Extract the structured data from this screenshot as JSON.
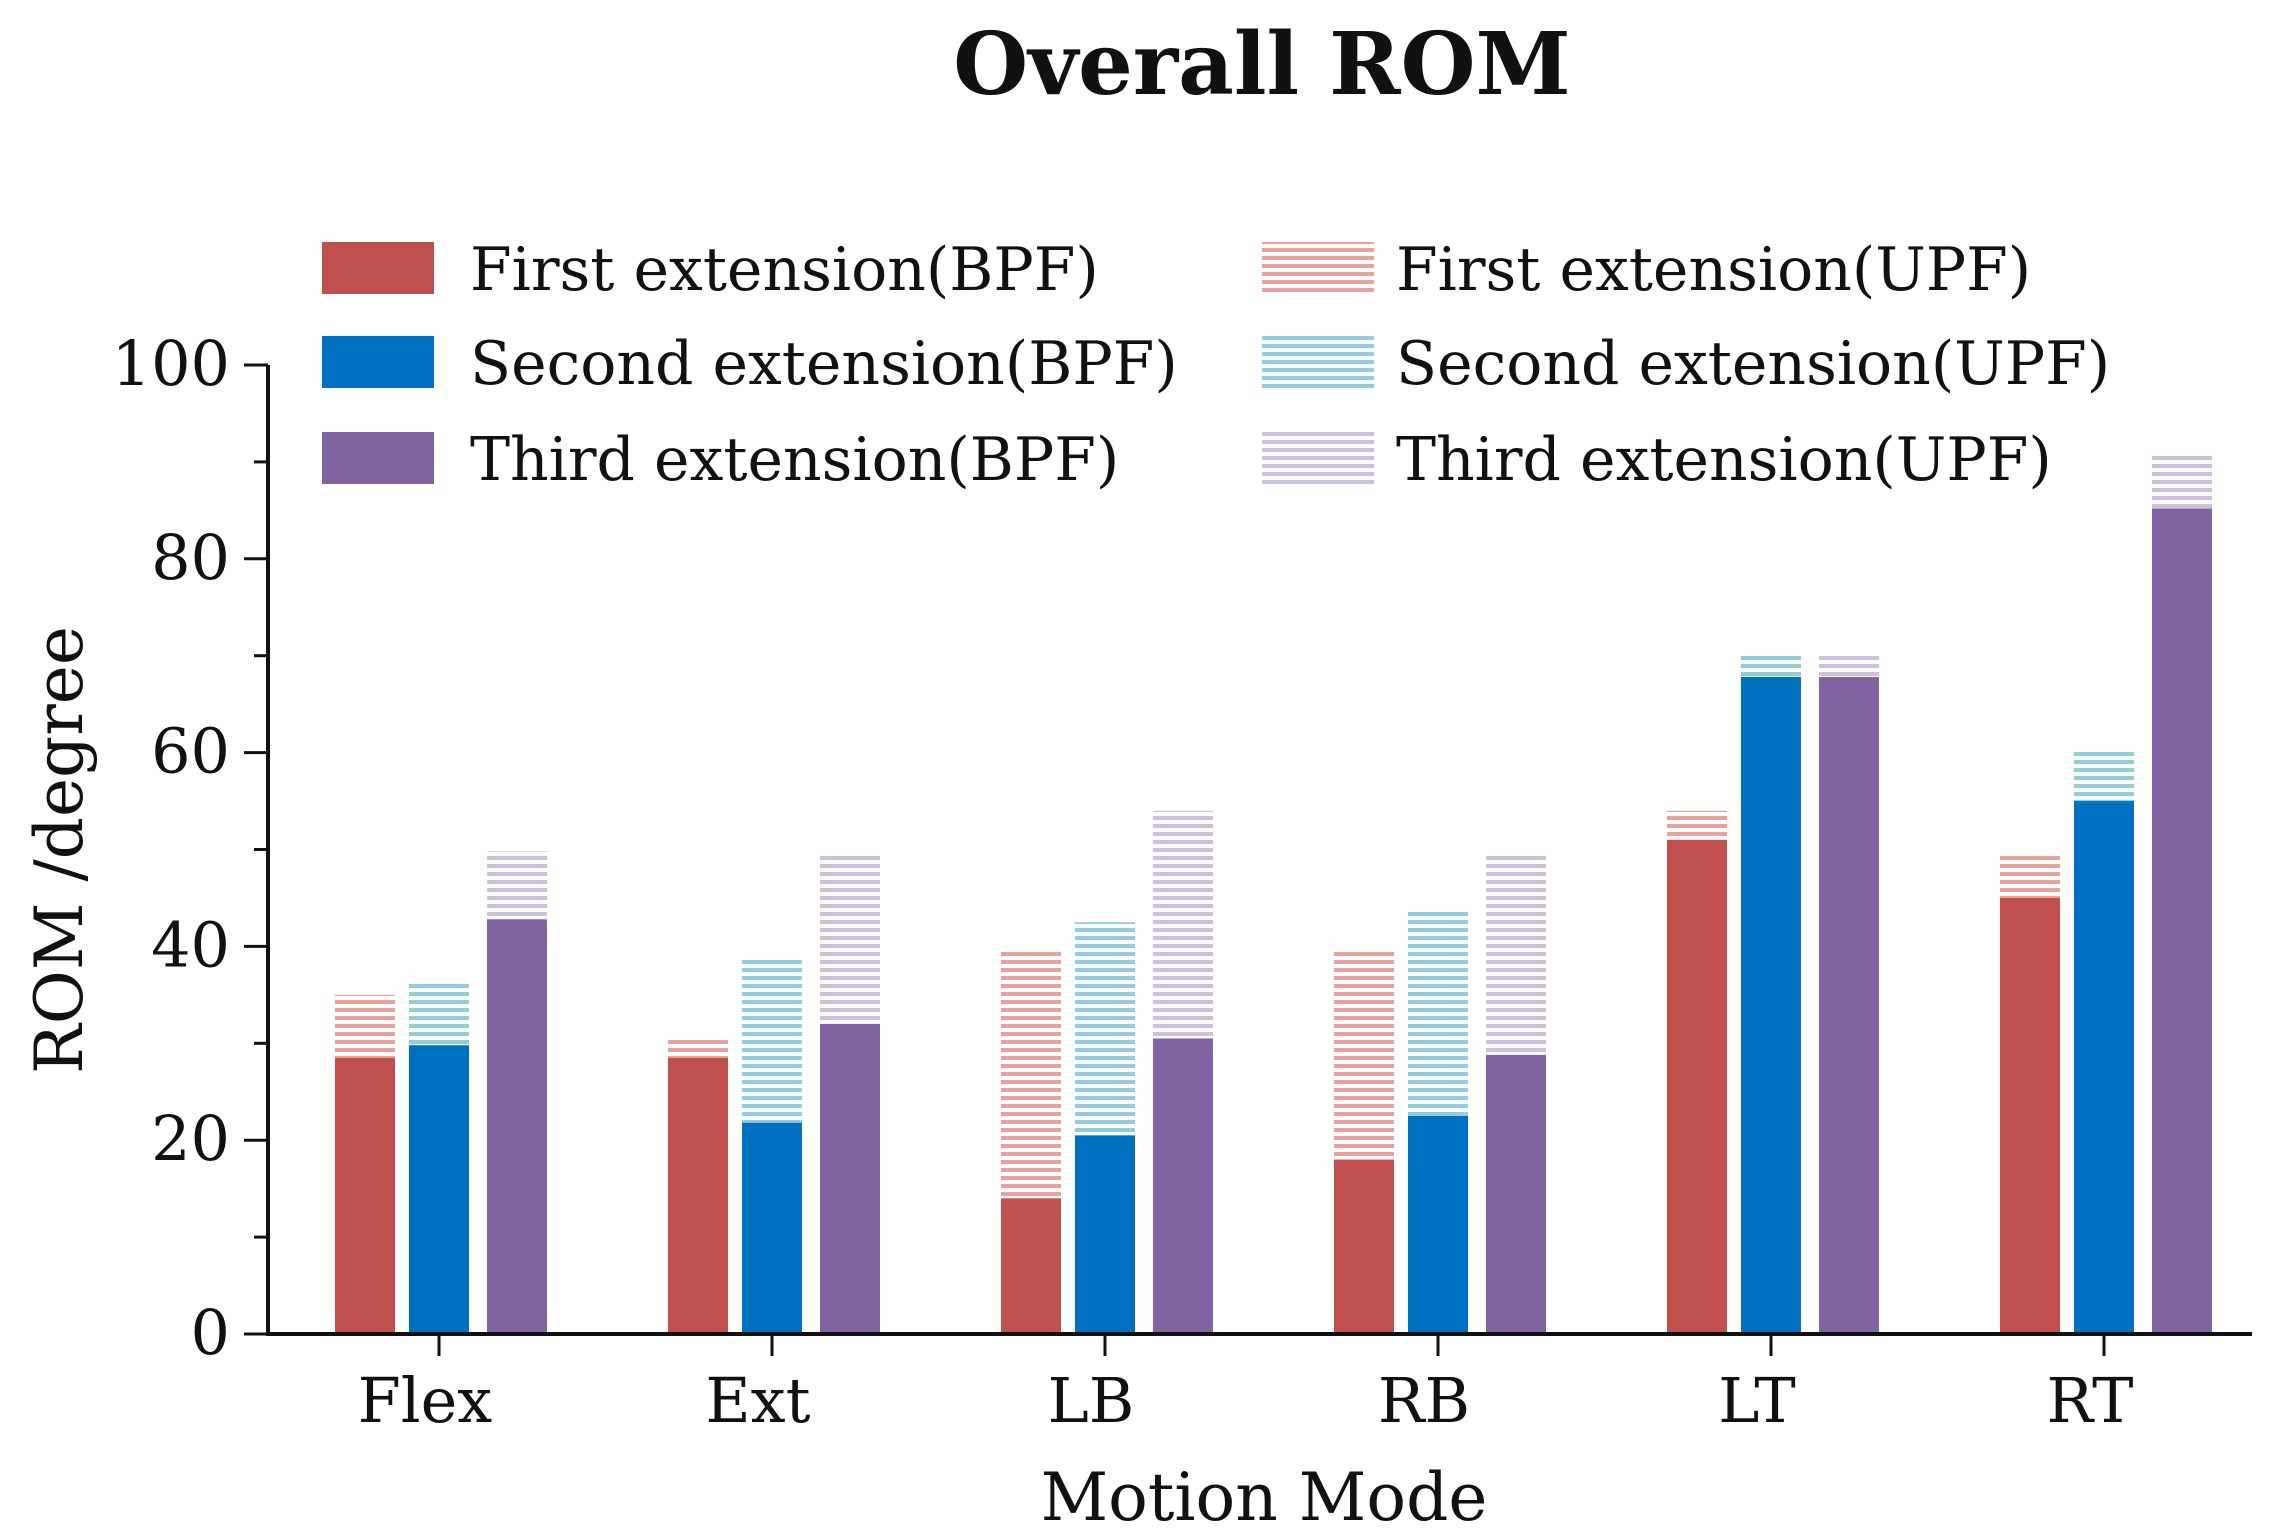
{
  "chart_data": {
    "type": "bar",
    "title": "Overall ROM",
    "xlabel": "Motion Mode",
    "ylabel": "ROM /degree",
    "ylim": [
      0,
      100
    ],
    "yticks": [
      "0",
      "20",
      "40",
      "60",
      "80",
      "100"
    ],
    "categories": [
      "Flex",
      "Ext",
      "LB",
      "RB",
      "LT",
      "RT"
    ],
    "series": [
      {
        "name": "First extension(BPF)",
        "color": "#C0504D",
        "values": [
          28.5,
          28.5,
          14,
          18,
          51,
          45
        ]
      },
      {
        "name": "Second extension(BPF)",
        "color": "#0070C0",
        "values": [
          29.8,
          21.8,
          20.5,
          22.5,
          67.8,
          55
        ]
      },
      {
        "name": "Third extension(BPF)",
        "color": "#8064A2",
        "values": [
          42.8,
          32,
          30.5,
          28.8,
          67.8,
          85.2
        ]
      },
      {
        "name": "First extension(UPF)",
        "color": "#E8A39E",
        "values": [
          35,
          30.5,
          39.8,
          39.8,
          54,
          49.7
        ]
      },
      {
        "name": "Second extension(UPF)",
        "color": "#93CDDD",
        "values": [
          36.5,
          38.8,
          42.5,
          43.8,
          70,
          60.3
        ]
      },
      {
        "name": "Third extension(UPF)",
        "color": "#CCC0DA",
        "values": [
          49.8,
          49.7,
          54,
          49.7,
          70,
          90.8
        ]
      }
    ],
    "legend_position": "top-left, inside plot, two columns",
    "grid": false,
    "stacked_note": "UPF value drawn as hatched cap on top of the BPF bar of the same extension"
  }
}
